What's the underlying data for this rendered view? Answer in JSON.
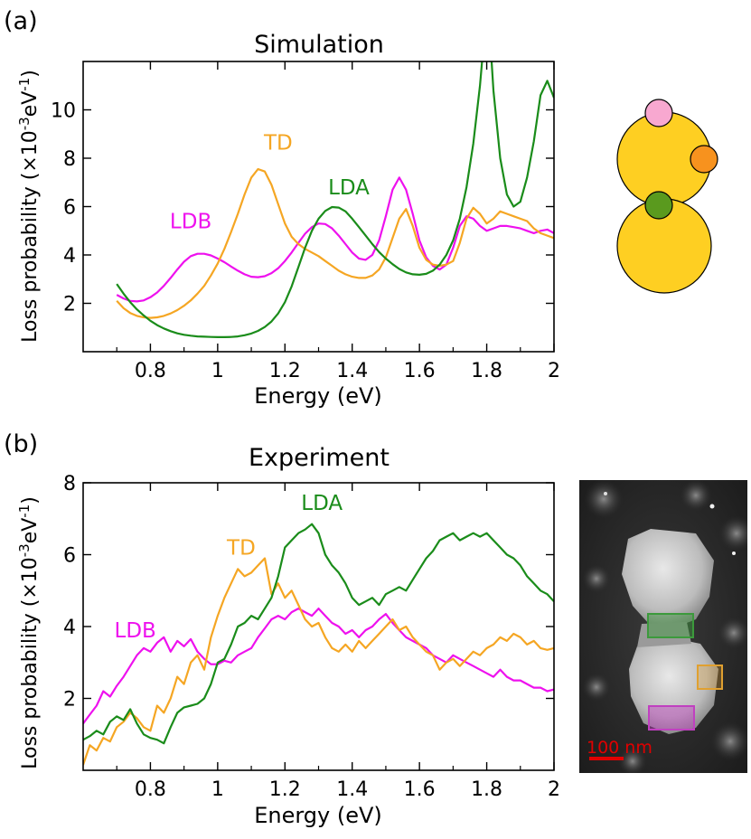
{
  "colors": {
    "LDB": "#ee11ee",
    "TD": "#f5a623",
    "LDA": "#1a8c1a",
    "scale_bar": "#e00000",
    "box_green": "#3c9a3c",
    "box_orange": "#e0a030",
    "box_magenta": "#c040c0",
    "sphere_yellow": "#fecf22",
    "sphere_pink": "#f8a8d0",
    "sphere_orange": "#f7921e",
    "sphere_green": "#5a9a1e"
  },
  "chart_data": [
    {
      "type": "line",
      "panel": "(a)",
      "title": "Simulation",
      "xlabel": "Energy (eV)",
      "ylabel_main": "Loss probability (×10",
      "ylabel_exp1": "-3",
      "ylabel_mid": "eV",
      "ylabel_exp2": "-1",
      "ylabel_end": ")",
      "xlim": [
        0.6,
        2.0
      ],
      "ylim": [
        0,
        12
      ],
      "xticks": [
        0.8,
        1.0,
        1.2,
        1.4,
        1.6,
        1.8,
        2.0
      ],
      "xtick_labels": [
        "0.8",
        "1",
        "1.2",
        "1.4",
        "1.6",
        "1.8",
        "2"
      ],
      "yticks": [
        2,
        4,
        6,
        8,
        10
      ],
      "ytick_labels": [
        "2",
        "4",
        "6",
        "8",
        "10"
      ],
      "series": [
        {
          "name": "LDB",
          "label_pos": [
            0.92,
            5.1
          ],
          "x": [
            0.7,
            0.72,
            0.74,
            0.76,
            0.78,
            0.8,
            0.82,
            0.84,
            0.86,
            0.88,
            0.9,
            0.92,
            0.94,
            0.96,
            0.98,
            1.0,
            1.02,
            1.04,
            1.06,
            1.08,
            1.1,
            1.12,
            1.14,
            1.16,
            1.18,
            1.2,
            1.22,
            1.24,
            1.26,
            1.28,
            1.3,
            1.32,
            1.34,
            1.36,
            1.38,
            1.4,
            1.42,
            1.44,
            1.46,
            1.48,
            1.5,
            1.52,
            1.54,
            1.56,
            1.58,
            1.6,
            1.62,
            1.64,
            1.66,
            1.68,
            1.7,
            1.72,
            1.74,
            1.76,
            1.78,
            1.8,
            1.82,
            1.84,
            1.86,
            1.88,
            1.9,
            1.92,
            1.94,
            1.96,
            1.98,
            2.0
          ],
          "y": [
            2.35,
            2.2,
            2.1,
            2.08,
            2.12,
            2.25,
            2.45,
            2.72,
            3.05,
            3.4,
            3.72,
            3.95,
            4.05,
            4.05,
            3.98,
            3.85,
            3.7,
            3.52,
            3.35,
            3.2,
            3.1,
            3.08,
            3.12,
            3.25,
            3.45,
            3.75,
            4.1,
            4.5,
            4.88,
            5.15,
            5.3,
            5.28,
            5.1,
            4.8,
            4.45,
            4.1,
            3.85,
            3.8,
            4.0,
            4.6,
            5.6,
            6.7,
            7.2,
            6.7,
            5.7,
            4.6,
            3.9,
            3.55,
            3.4,
            3.6,
            4.3,
            5.2,
            5.6,
            5.5,
            5.2,
            5.0,
            5.1,
            5.2,
            5.2,
            5.15,
            5.1,
            5.0,
            4.9,
            5.0,
            5.05,
            4.9
          ]
        },
        {
          "name": "TD",
          "label_pos": [
            1.18,
            8.35
          ],
          "x": [
            0.7,
            0.72,
            0.74,
            0.76,
            0.78,
            0.8,
            0.82,
            0.84,
            0.86,
            0.88,
            0.9,
            0.92,
            0.94,
            0.96,
            0.98,
            1.0,
            1.02,
            1.04,
            1.06,
            1.08,
            1.1,
            1.12,
            1.14,
            1.16,
            1.18,
            1.2,
            1.22,
            1.24,
            1.26,
            1.28,
            1.3,
            1.32,
            1.34,
            1.36,
            1.38,
            1.4,
            1.42,
            1.44,
            1.46,
            1.48,
            1.5,
            1.52,
            1.54,
            1.56,
            1.58,
            1.6,
            1.62,
            1.64,
            1.66,
            1.68,
            1.7,
            1.72,
            1.74,
            1.76,
            1.78,
            1.8,
            1.82,
            1.84,
            1.86,
            1.88,
            1.9,
            1.92,
            1.94,
            1.96,
            1.98,
            2.0
          ],
          "y": [
            2.1,
            1.8,
            1.6,
            1.48,
            1.42,
            1.4,
            1.42,
            1.48,
            1.58,
            1.72,
            1.9,
            2.12,
            2.4,
            2.72,
            3.15,
            3.65,
            4.25,
            4.95,
            5.7,
            6.5,
            7.2,
            7.55,
            7.45,
            6.9,
            6.1,
            5.3,
            4.75,
            4.45,
            4.25,
            4.1,
            3.95,
            3.75,
            3.55,
            3.35,
            3.2,
            3.1,
            3.05,
            3.05,
            3.15,
            3.4,
            3.9,
            4.7,
            5.5,
            5.9,
            5.2,
            4.3,
            3.8,
            3.6,
            3.55,
            3.6,
            3.75,
            4.5,
            5.5,
            5.95,
            5.7,
            5.3,
            5.5,
            5.8,
            5.7,
            5.6,
            5.5,
            5.4,
            5.1,
            4.9,
            4.8,
            4.7
          ]
        },
        {
          "name": "LDA",
          "label_pos": [
            1.39,
            6.5
          ],
          "x": [
            0.7,
            0.72,
            0.74,
            0.76,
            0.78,
            0.8,
            0.82,
            0.84,
            0.86,
            0.88,
            0.9,
            0.92,
            0.94,
            0.96,
            0.98,
            1.0,
            1.02,
            1.04,
            1.06,
            1.08,
            1.1,
            1.12,
            1.14,
            1.16,
            1.18,
            1.2,
            1.22,
            1.24,
            1.26,
            1.28,
            1.3,
            1.32,
            1.34,
            1.36,
            1.38,
            1.4,
            1.42,
            1.44,
            1.46,
            1.48,
            1.5,
            1.52,
            1.54,
            1.56,
            1.58,
            1.6,
            1.62,
            1.64,
            1.66,
            1.68,
            1.7,
            1.72,
            1.74,
            1.76,
            1.78,
            1.79,
            1.8,
            1.81,
            1.82,
            1.84,
            1.86,
            1.88,
            1.9,
            1.92,
            1.94,
            1.96,
            1.98,
            2.0
          ],
          "y": [
            2.8,
            2.4,
            2.05,
            1.75,
            1.5,
            1.28,
            1.1,
            0.96,
            0.85,
            0.76,
            0.7,
            0.66,
            0.63,
            0.62,
            0.61,
            0.6,
            0.6,
            0.61,
            0.63,
            0.68,
            0.75,
            0.86,
            1.02,
            1.25,
            1.58,
            2.05,
            2.7,
            3.5,
            4.3,
            5.0,
            5.5,
            5.82,
            5.98,
            5.96,
            5.8,
            5.5,
            5.15,
            4.8,
            4.45,
            4.12,
            3.85,
            3.62,
            3.42,
            3.28,
            3.2,
            3.18,
            3.22,
            3.35,
            3.6,
            4.0,
            4.6,
            5.5,
            6.8,
            8.6,
            11.0,
            12.6,
            14.0,
            13.0,
            10.8,
            8.0,
            6.5,
            6.0,
            6.2,
            7.2,
            8.7,
            10.6,
            11.2,
            10.5
          ]
        }
      ]
    },
    {
      "type": "line",
      "panel": "(b)",
      "title": "Experiment",
      "xlabel": "Energy (eV)",
      "ylabel_main": "Loss probability (×10",
      "ylabel_exp1": "-3",
      "ylabel_mid": "eV",
      "ylabel_exp2": "-1",
      "ylabel_end": ")",
      "xlim": [
        0.6,
        2.0
      ],
      "ylim": [
        0,
        8
      ],
      "xticks": [
        0.8,
        1.0,
        1.2,
        1.4,
        1.6,
        1.8,
        2.0
      ],
      "xtick_labels": [
        "0.8",
        "1",
        "1.2",
        "1.4",
        "1.6",
        "1.8",
        "2"
      ],
      "yticks": [
        2,
        4,
        6,
        8
      ],
      "ytick_labels": [
        "2",
        "4",
        "6",
        "8"
      ],
      "series": [
        {
          "name": "LDB",
          "label_pos": [
            0.755,
            3.7
          ],
          "x": [
            0.6,
            0.62,
            0.64,
            0.66,
            0.68,
            0.7,
            0.72,
            0.74,
            0.76,
            0.78,
            0.8,
            0.82,
            0.84,
            0.86,
            0.88,
            0.9,
            0.92,
            0.94,
            0.96,
            0.98,
            1.0,
            1.02,
            1.04,
            1.06,
            1.08,
            1.1,
            1.12,
            1.14,
            1.16,
            1.18,
            1.2,
            1.22,
            1.24,
            1.26,
            1.28,
            1.3,
            1.32,
            1.34,
            1.36,
            1.38,
            1.4,
            1.42,
            1.44,
            1.46,
            1.48,
            1.5,
            1.52,
            1.54,
            1.56,
            1.58,
            1.6,
            1.62,
            1.64,
            1.66,
            1.68,
            1.7,
            1.72,
            1.74,
            1.76,
            1.78,
            1.8,
            1.82,
            1.84,
            1.86,
            1.88,
            1.9,
            1.92,
            1.94,
            1.96,
            1.98,
            2.0
          ],
          "y": [
            1.3,
            1.55,
            1.8,
            2.2,
            2.05,
            2.35,
            2.6,
            2.9,
            3.2,
            3.4,
            3.3,
            3.55,
            3.7,
            3.3,
            3.6,
            3.45,
            3.65,
            3.3,
            3.1,
            2.95,
            2.95,
            3.05,
            3.0,
            3.2,
            3.3,
            3.4,
            3.7,
            3.95,
            4.2,
            4.3,
            4.2,
            4.4,
            4.5,
            4.4,
            4.3,
            4.5,
            4.3,
            4.1,
            4.0,
            3.8,
            3.9,
            3.7,
            3.9,
            4.0,
            4.2,
            4.35,
            4.1,
            3.9,
            3.7,
            3.6,
            3.5,
            3.4,
            3.2,
            3.1,
            3.0,
            3.2,
            3.1,
            3.0,
            2.9,
            2.8,
            2.7,
            2.6,
            2.8,
            2.6,
            2.5,
            2.5,
            2.4,
            2.3,
            2.3,
            2.2,
            2.25
          ]
        },
        {
          "name": "TD",
          "label_pos": [
            1.07,
            6.0
          ],
          "x": [
            0.6,
            0.62,
            0.64,
            0.66,
            0.68,
            0.7,
            0.72,
            0.74,
            0.76,
            0.78,
            0.8,
            0.82,
            0.84,
            0.86,
            0.88,
            0.9,
            0.92,
            0.94,
            0.96,
            0.98,
            1.0,
            1.02,
            1.04,
            1.06,
            1.08,
            1.1,
            1.12,
            1.14,
            1.16,
            1.18,
            1.2,
            1.22,
            1.24,
            1.26,
            1.28,
            1.3,
            1.32,
            1.34,
            1.36,
            1.38,
            1.4,
            1.42,
            1.44,
            1.46,
            1.48,
            1.5,
            1.52,
            1.54,
            1.56,
            1.58,
            1.6,
            1.62,
            1.64,
            1.66,
            1.68,
            1.7,
            1.72,
            1.74,
            1.76,
            1.78,
            1.8,
            1.82,
            1.84,
            1.86,
            1.88,
            1.9,
            1.92,
            1.94,
            1.96,
            1.98,
            2.0
          ],
          "y": [
            0.15,
            0.7,
            0.55,
            0.9,
            0.8,
            1.2,
            1.35,
            1.6,
            1.45,
            1.2,
            1.1,
            1.8,
            1.6,
            2.0,
            2.6,
            2.4,
            3.0,
            3.2,
            2.8,
            3.7,
            4.3,
            4.8,
            5.2,
            5.6,
            5.4,
            5.5,
            5.7,
            5.9,
            4.9,
            5.2,
            4.8,
            5.0,
            4.6,
            4.2,
            4.0,
            4.1,
            3.7,
            3.4,
            3.3,
            3.5,
            3.3,
            3.6,
            3.4,
            3.6,
            3.8,
            4.0,
            4.2,
            3.9,
            4.0,
            3.7,
            3.5,
            3.3,
            3.2,
            2.8,
            3.0,
            3.1,
            2.9,
            3.1,
            3.3,
            3.2,
            3.4,
            3.5,
            3.7,
            3.6,
            3.8,
            3.7,
            3.5,
            3.6,
            3.4,
            3.35,
            3.4
          ]
        },
        {
          "name": "LDA",
          "label_pos": [
            1.31,
            7.25
          ],
          "x": [
            0.6,
            0.62,
            0.64,
            0.66,
            0.68,
            0.7,
            0.72,
            0.74,
            0.76,
            0.78,
            0.8,
            0.82,
            0.84,
            0.86,
            0.88,
            0.9,
            0.92,
            0.94,
            0.96,
            0.98,
            1.0,
            1.02,
            1.04,
            1.06,
            1.08,
            1.1,
            1.12,
            1.14,
            1.16,
            1.18,
            1.2,
            1.22,
            1.24,
            1.26,
            1.28,
            1.3,
            1.32,
            1.34,
            1.36,
            1.38,
            1.4,
            1.42,
            1.44,
            1.46,
            1.48,
            1.5,
            1.52,
            1.54,
            1.56,
            1.58,
            1.6,
            1.62,
            1.64,
            1.66,
            1.68,
            1.7,
            1.72,
            1.74,
            1.76,
            1.78,
            1.8,
            1.82,
            1.84,
            1.86,
            1.88,
            1.9,
            1.92,
            1.94,
            1.96,
            1.98,
            2.0
          ],
          "y": [
            0.85,
            0.95,
            1.1,
            1.0,
            1.35,
            1.5,
            1.4,
            1.7,
            1.3,
            1.0,
            0.9,
            0.85,
            0.75,
            1.2,
            1.6,
            1.75,
            1.8,
            1.85,
            2.0,
            2.4,
            3.0,
            3.1,
            3.5,
            4.0,
            4.1,
            4.3,
            4.2,
            4.5,
            4.8,
            5.4,
            6.2,
            6.4,
            6.6,
            6.7,
            6.85,
            6.6,
            6.0,
            5.7,
            5.5,
            5.2,
            4.8,
            4.6,
            4.7,
            4.8,
            4.6,
            4.9,
            5.0,
            5.1,
            5.0,
            5.3,
            5.6,
            5.9,
            6.1,
            6.4,
            6.5,
            6.6,
            6.4,
            6.5,
            6.6,
            6.5,
            6.6,
            6.4,
            6.2,
            6.0,
            5.9,
            5.7,
            5.4,
            5.2,
            5.0,
            4.9,
            4.7
          ]
        }
      ]
    }
  ],
  "scale_bar": {
    "label": "100 nm"
  }
}
